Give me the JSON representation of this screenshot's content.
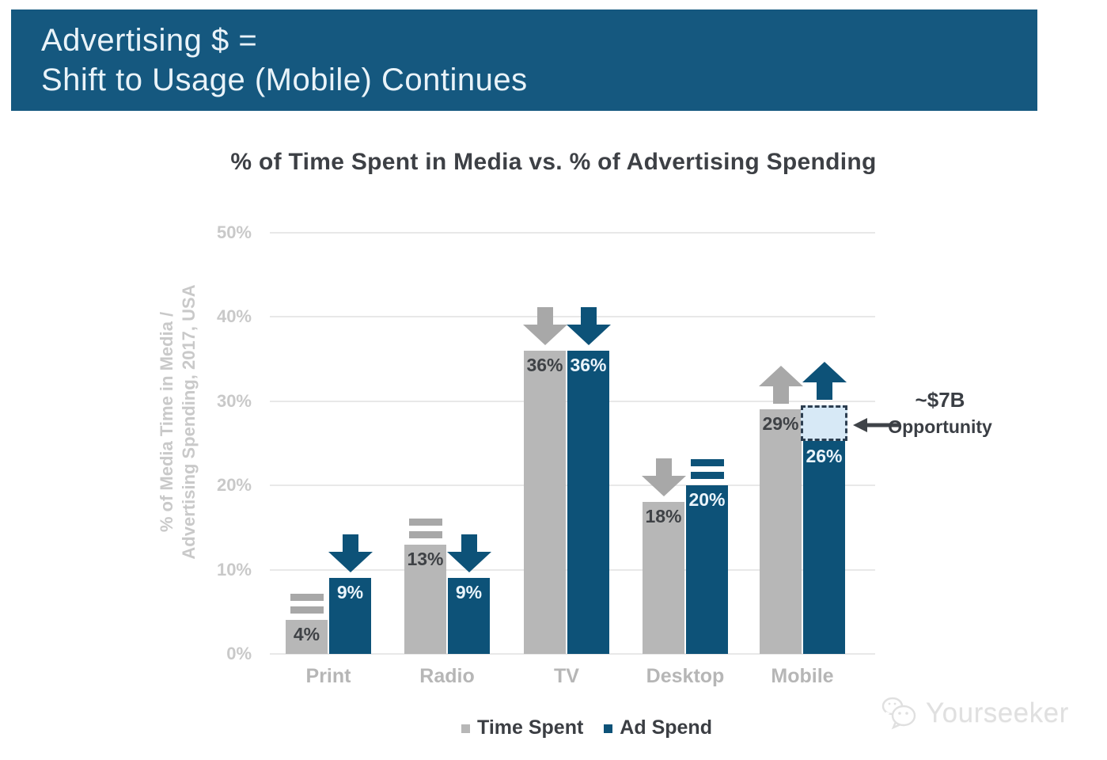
{
  "banner": {
    "line1": "Advertising $ =",
    "line2": "Shift to Usage (Mobile) Continues",
    "background": "#15587f"
  },
  "chart_data": {
    "type": "bar",
    "title": "% of Time Spent in Media vs. % of Advertising Spending",
    "ylabel": "% of Media Time in Media / Advertising Spending, 2017, USA",
    "ylabel_lines": [
      "% of Media Time in Media /",
      "Advertising Spending, 2017, USA"
    ],
    "categories": [
      "Print",
      "Radio",
      "TV",
      "Desktop",
      "Mobile"
    ],
    "series": [
      {
        "name": "Time Spent",
        "color": "#b7b7b7",
        "marker_color": "#a8a8a8",
        "label_color": "#3f4246",
        "values": [
          4,
          13,
          36,
          18,
          29
        ],
        "trend_markers": [
          "equals",
          "equals",
          "down",
          "down",
          "up"
        ]
      },
      {
        "name": "Ad Spend",
        "color": "#0d5278",
        "marker_color": "#0d5278",
        "label_color": "#eaf4fb",
        "values": [
          9,
          9,
          36,
          20,
          26
        ],
        "trend_markers": [
          "down",
          "down",
          "down",
          "equals",
          "up"
        ]
      }
    ],
    "value_suffix": "%",
    "ylim": [
      0,
      50
    ],
    "ytick_step": 10,
    "ytick_suffix": "%",
    "grid": true,
    "legend_position": "bottom"
  },
  "annotation": {
    "line1": "~$7B",
    "line2": "Opportunity",
    "target_category": "Mobile",
    "target_series": "Ad Spend",
    "range_pct": [
      26,
      29.5
    ],
    "box_fill": "#d7e9f6",
    "box_border": "#2c3e50"
  },
  "watermark": {
    "text": "Yourseeker",
    "icon": "chat-bubbles-icon"
  }
}
